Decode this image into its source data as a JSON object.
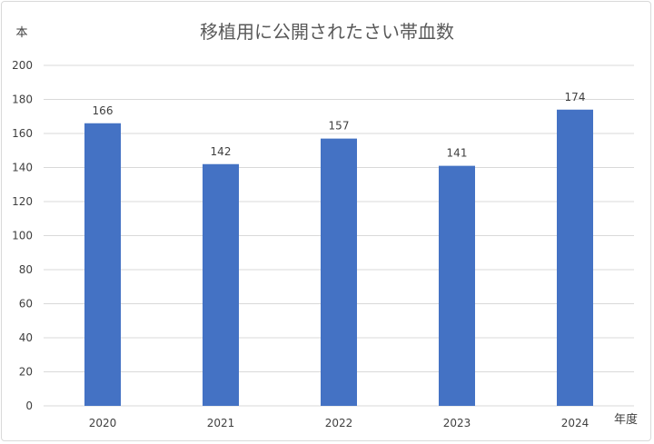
{
  "chart_data": {
    "type": "bar",
    "title": "移植用に公開されたさい帯血数",
    "ylabel": "本",
    "xlabel": "年度",
    "categories": [
      "2020",
      "2021",
      "2022",
      "2023",
      "2024"
    ],
    "values": [
      166,
      142,
      157,
      141,
      174
    ],
    "data_labels": [
      "166",
      "142",
      "157",
      "141",
      "174"
    ],
    "ylim": [
      0,
      200
    ],
    "yticks": [
      "0",
      "20",
      "40",
      "60",
      "80",
      "100",
      "120",
      "140",
      "160",
      "180",
      "200"
    ],
    "grid": true,
    "legend": "none",
    "bar_color": "#4472c4",
    "gridline_color": "#d9d9d9"
  }
}
